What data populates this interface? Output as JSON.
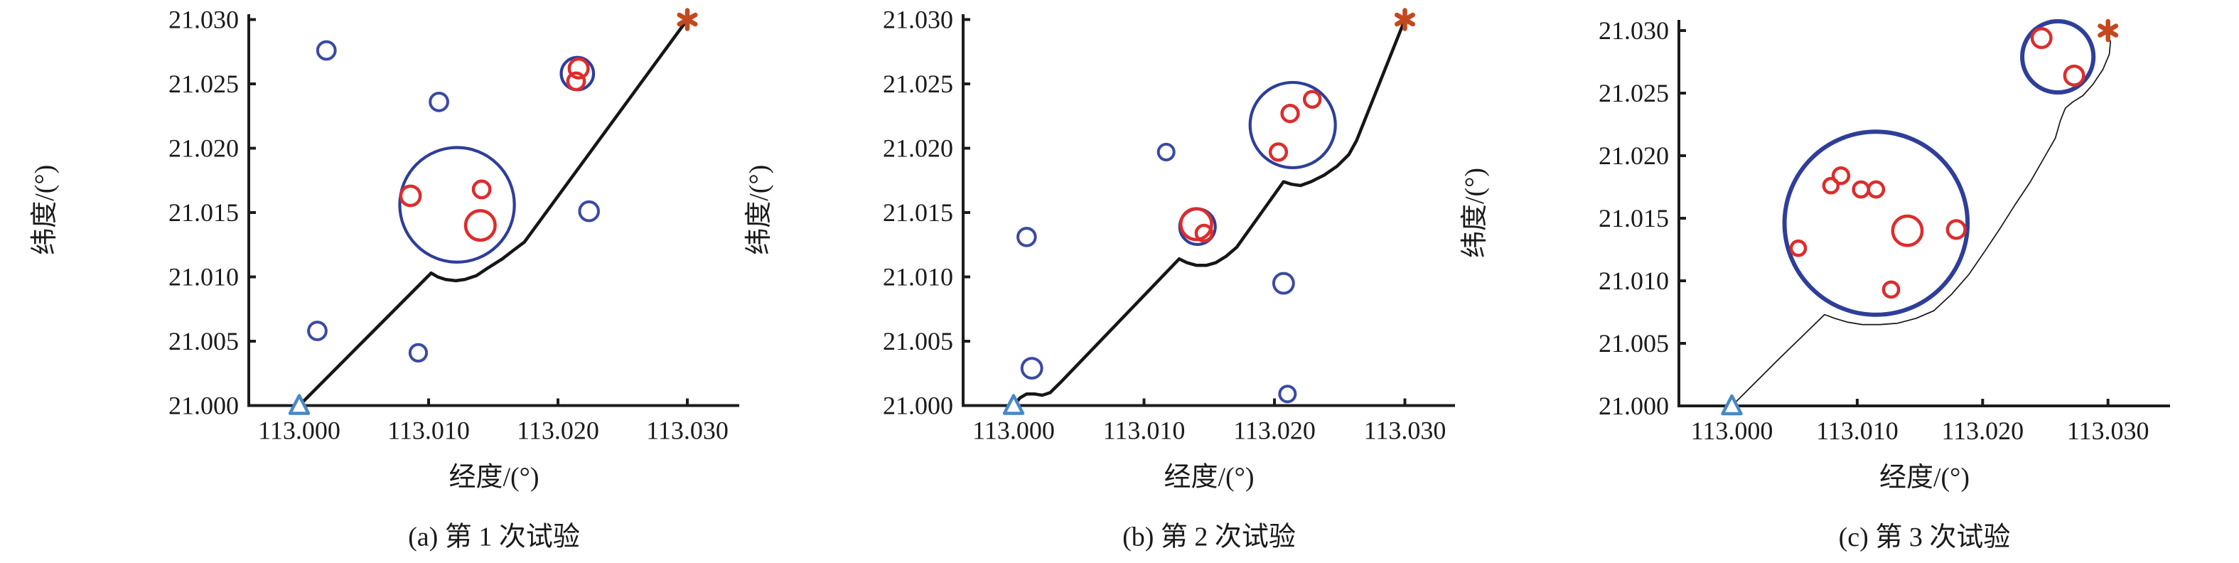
{
  "figure_title": "",
  "axes": {
    "x_label": "经度/(°)",
    "y_label": "纬度/(°)",
    "x_tick_labels": [
      "113.000",
      "113.010",
      "113.020",
      "113.030"
    ],
    "y_tick_labels": [
      "21.000",
      "21.005",
      "21.010",
      "21.015",
      "21.020",
      "21.025",
      "21.030"
    ]
  },
  "colors": {
    "obstacle_blue": "#3a4aa3",
    "cluster_blue": "#2e3e99",
    "target_red": "#dd2c2c",
    "path_black": "#161616",
    "start_triangle_blue": "#4a87c7",
    "goal_asterisk_orange": "#c2491f",
    "axis_color": "#1c1c1c",
    "text_color": "#1a1a1a"
  },
  "chart_data": [
    {
      "type": "scatter",
      "title": "(a) 第 1 次试验",
      "xlabel": "经度/(°)",
      "ylabel": "纬度/(°)",
      "x_ticks": [
        113.0,
        113.01,
        113.02,
        113.03
      ],
      "y_ticks": [
        21.0,
        21.005,
        21.01,
        21.015,
        21.02,
        21.025,
        21.03
      ],
      "xlim": [
        112.9961,
        113.034
      ],
      "ylim": [
        21.0,
        21.0304
      ],
      "grid": false,
      "start": [
        113.0,
        21.0
      ],
      "goal": [
        113.03,
        21.03
      ],
      "obstacle_circles": [
        [
          113.0021,
          21.0276,
          0.00068
        ],
        [
          113.0108,
          21.0236,
          0.00068
        ],
        [
          113.0224,
          21.0151,
          0.00073
        ],
        [
          113.0014,
          21.0058,
          0.00068
        ],
        [
          113.0092,
          21.0041,
          0.00064
        ]
      ],
      "cluster_circles": [
        [
          113.0122,
          21.0156,
          0.00443
        ],
        [
          113.0215,
          21.0258,
          0.00125
        ]
      ],
      "target_circles": [
        [
          113.0086,
          21.0163,
          0.00075
        ],
        [
          113.0141,
          21.0168,
          0.00064
        ],
        [
          113.014,
          21.014,
          0.00114
        ],
        [
          113.0216,
          21.0262,
          0.00073
        ],
        [
          113.0214,
          21.0252,
          0.00064
        ]
      ],
      "path": [
        [
          113.0,
          21.0
        ],
        [
          113.0102,
          21.0103
        ],
        [
          113.0107,
          21.01
        ],
        [
          113.0113,
          21.0098
        ],
        [
          113.0121,
          21.0097
        ],
        [
          113.0128,
          21.0098
        ],
        [
          113.0137,
          21.0101
        ],
        [
          113.0146,
          21.0107
        ],
        [
          113.0157,
          21.0114
        ],
        [
          113.0166,
          21.0121
        ],
        [
          113.0174,
          21.0127
        ],
        [
          113.03,
          21.03
        ]
      ]
    },
    {
      "type": "scatter",
      "title": "(b) 第 2 次试验",
      "xlabel": "经度/(°)",
      "ylabel": "纬度/(°)",
      "x_ticks": [
        113.0,
        113.01,
        113.02,
        113.03
      ],
      "y_ticks": [
        21.0,
        21.005,
        21.01,
        21.015,
        21.02,
        21.025,
        21.03
      ],
      "xlim": [
        112.9961,
        113.034
      ],
      "ylim": [
        21.0,
        21.0304
      ],
      "grid": false,
      "start": [
        113.0,
        21.0
      ],
      "goal": [
        113.03,
        21.03
      ],
      "obstacle_circles": [
        [
          113.001,
          21.0131,
          0.00067
        ],
        [
          113.0014,
          21.0029,
          0.00076
        ],
        [
          113.0117,
          21.0197,
          0.0006
        ],
        [
          113.0207,
          21.0095,
          0.00076
        ],
        [
          113.021,
          21.0009,
          0.0006
        ]
      ],
      "cluster_circles": [
        [
          113.0141,
          21.0139,
          0.00136
        ],
        [
          113.0214,
          21.0218,
          0.00327
        ]
      ],
      "target_circles": [
        [
          113.014,
          21.0141,
          0.00118
        ],
        [
          113.0146,
          21.0134,
          0.0006
        ],
        [
          113.0229,
          21.0238,
          0.0006
        ],
        [
          113.0212,
          21.0227,
          0.00062
        ],
        [
          113.0203,
          21.0197,
          0.00062
        ]
      ],
      "path": [
        [
          113.0,
          21.0
        ],
        [
          113.0005,
          21.0006
        ],
        [
          113.001,
          21.0009
        ],
        [
          113.0016,
          21.0009
        ],
        [
          113.0022,
          21.0008
        ],
        [
          113.0028,
          21.001
        ],
        [
          113.0036,
          21.0018
        ],
        [
          113.0127,
          21.0114
        ],
        [
          113.0133,
          21.0111
        ],
        [
          113.014,
          21.0109
        ],
        [
          113.0148,
          21.0109
        ],
        [
          113.0155,
          21.0111
        ],
        [
          113.0163,
          21.0116
        ],
        [
          113.0171,
          21.0123
        ],
        [
          113.0207,
          21.0174
        ],
        [
          113.0213,
          21.0172
        ],
        [
          113.022,
          21.0171
        ],
        [
          113.0228,
          21.0174
        ],
        [
          113.0238,
          21.0179
        ],
        [
          113.0248,
          21.0186
        ],
        [
          113.0257,
          21.0195
        ],
        [
          113.0263,
          21.0206
        ],
        [
          113.03,
          21.03
        ]
      ]
    },
    {
      "type": "scatter",
      "title": "(c) 第 3 次试验",
      "xlabel": "经度/(°)",
      "ylabel": "纬度/(°)",
      "x_ticks": [
        113.0,
        113.01,
        113.02,
        113.03
      ],
      "y_ticks": [
        21.0,
        21.005,
        21.01,
        21.015,
        21.02,
        21.025,
        21.03
      ],
      "xlim": [
        112.9958,
        113.035
      ],
      "ylim": [
        21.0,
        21.0309
      ],
      "grid": false,
      "start": [
        113.0,
        21.0
      ],
      "goal": [
        113.03,
        21.03
      ],
      "obstacle_circles": [],
      "cluster_circles": [
        [
          113.0115,
          21.0146,
          0.0073
        ],
        [
          113.026,
          21.0279,
          0.00284
        ]
      ],
      "target_circles": [
        [
          113.0087,
          21.0184,
          0.00062
        ],
        [
          113.0079,
          21.0176,
          0.00057
        ],
        [
          113.0103,
          21.0173,
          0.0006
        ],
        [
          113.0115,
          21.0173,
          0.0006
        ],
        [
          113.014,
          21.014,
          0.00117
        ],
        [
          113.0179,
          21.0141,
          0.0007
        ],
        [
          113.0053,
          21.0126,
          0.00057
        ],
        [
          113.0127,
          21.0093,
          0.0006
        ],
        [
          113.0247,
          21.0294,
          0.00075
        ],
        [
          113.0273,
          21.0264,
          0.00075
        ]
      ],
      "path": [
        [
          113.0,
          21.0
        ],
        [
          113.0036,
          21.0036
        ],
        [
          113.0074,
          21.0073
        ],
        [
          113.0082,
          21.007
        ],
        [
          113.0092,
          21.0067
        ],
        [
          113.0104,
          21.0065
        ],
        [
          113.0118,
          21.0065
        ],
        [
          113.0132,
          21.0066
        ],
        [
          113.0147,
          21.007
        ],
        [
          113.0161,
          21.0076
        ],
        [
          113.0175,
          21.0089
        ],
        [
          113.0189,
          21.0105
        ],
        [
          113.0202,
          21.0124
        ],
        [
          113.0214,
          21.0142
        ],
        [
          113.0226,
          21.0161
        ],
        [
          113.0238,
          21.0179
        ],
        [
          113.025,
          21.02
        ],
        [
          113.0258,
          21.0214
        ],
        [
          113.0262,
          21.0228
        ],
        [
          113.0266,
          21.0238
        ],
        [
          113.0272,
          21.0243
        ],
        [
          113.028,
          21.0248
        ],
        [
          113.0288,
          21.0257
        ],
        [
          113.0296,
          21.0269
        ],
        [
          113.0301,
          21.0281
        ],
        [
          113.0302,
          21.0291
        ],
        [
          113.0299,
          21.0299
        ]
      ]
    }
  ]
}
